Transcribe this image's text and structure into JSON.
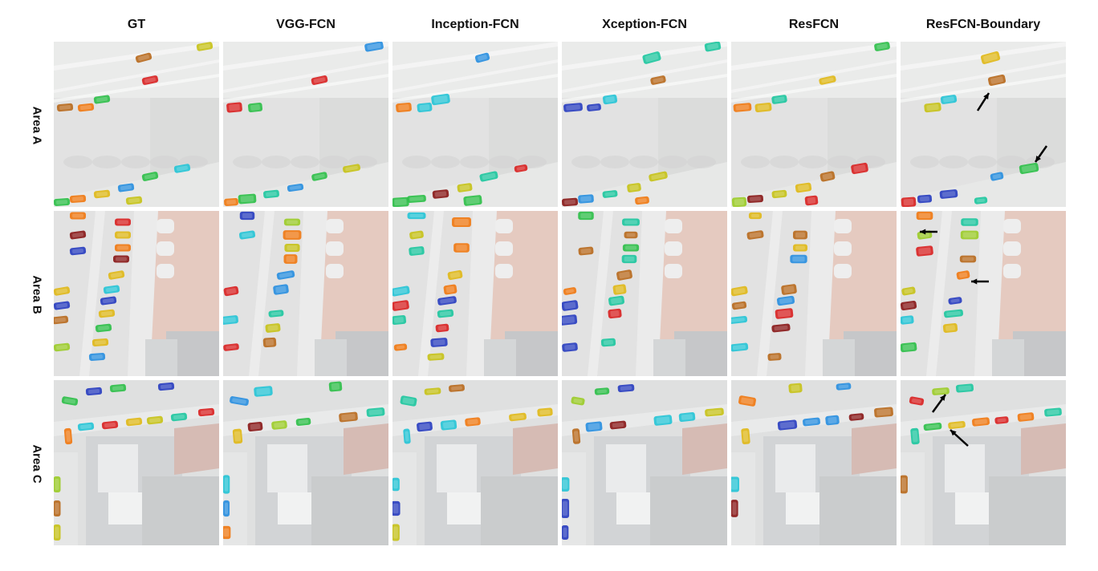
{
  "columns": [
    "GT",
    "VGG-FCN",
    "Inception-FCN",
    "Xception-FCN",
    "ResFCN",
    "ResFCN-Boundary"
  ],
  "rows": [
    "Area A",
    "Area B",
    "Area C"
  ],
  "palette": [
    "#d92424",
    "#f07a14",
    "#e0b81a",
    "#9ccc2a",
    "#2fbf4a",
    "#1fc7a0",
    "#27c4d6",
    "#2a8fe0",
    "#2a3fc0",
    "#8a1a1a",
    "#b86b20",
    "#c7c21a"
  ],
  "background": {
    "area_a": {
      "base": "#d8d9d8",
      "road": "#e3e4e3",
      "marking": "#f6f6f6"
    },
    "area_b": {
      "base": "#d9d9d9",
      "roof": "#ddb8ab",
      "building": "#b3b5b7"
    },
    "area_c": {
      "base": "#d4d6d6",
      "building": "#c3c6c8",
      "roof": "#c9a49b"
    }
  },
  "arrows": [
    {
      "row": 0,
      "col": 5,
      "label": "arrow-icon"
    },
    {
      "row": 1,
      "col": 5,
      "label": "arrow-icon"
    },
    {
      "row": 2,
      "col": 5,
      "label": "arrow-icon"
    }
  ]
}
